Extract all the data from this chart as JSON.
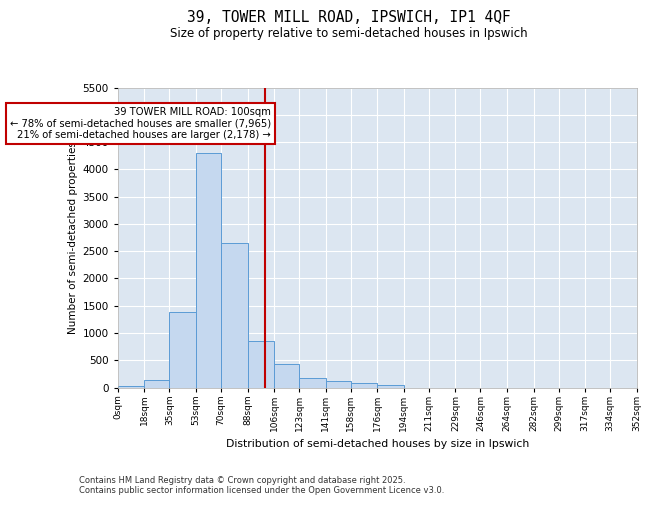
{
  "title_line1": "39, TOWER MILL ROAD, IPSWICH, IP1 4QF",
  "title_line2": "Size of property relative to semi-detached houses in Ipswich",
  "xlabel": "Distribution of semi-detached houses by size in Ipswich",
  "ylabel": "Number of semi-detached properties",
  "property_label": "39 TOWER MILL ROAD: 100sqm",
  "pct_smaller": "78% of semi-detached houses are smaller (7,965)",
  "pct_larger": "21% of semi-detached houses are larger (2,178)",
  "property_size": 100,
  "bin_edges": [
    0,
    18,
    35,
    53,
    70,
    88,
    106,
    123,
    141,
    158,
    176,
    194,
    211,
    229,
    246,
    264,
    282,
    299,
    317,
    334,
    352
  ],
  "bar_heights": [
    20,
    140,
    1380,
    4300,
    2650,
    850,
    430,
    180,
    120,
    80,
    50,
    0,
    0,
    0,
    0,
    0,
    0,
    0,
    0,
    0
  ],
  "bar_color": "#c5d8ef",
  "bar_edge_color": "#5b9bd5",
  "vline_color": "#c00000",
  "annotation_box_edgecolor": "#c00000",
  "plot_bg_color": "#dce6f1",
  "grid_color": "#ffffff",
  "footer_line1": "Contains HM Land Registry data © Crown copyright and database right 2025.",
  "footer_line2": "Contains public sector information licensed under the Open Government Licence v3.0.",
  "ylim_max": 5500,
  "yticks": [
    0,
    500,
    1000,
    1500,
    2000,
    2500,
    3000,
    3500,
    4000,
    4500,
    5000,
    5500
  ]
}
